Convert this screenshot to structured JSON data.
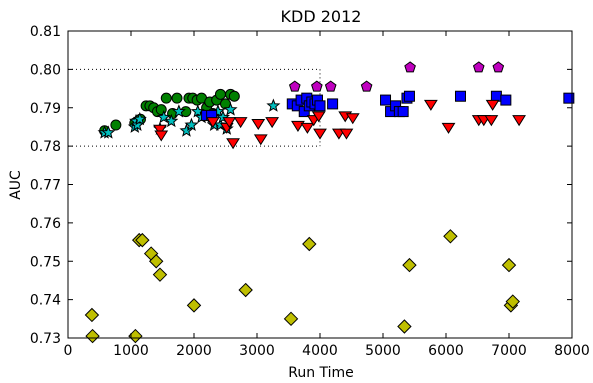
{
  "chart_data": {
    "type": "scatter",
    "title": "KDD 2012",
    "xlabel": "Run Time",
    "ylabel": "AUC",
    "xlim": [
      0,
      8000
    ],
    "ylim": [
      0.73,
      0.81
    ],
    "xticks": [
      0,
      1000,
      2000,
      3000,
      4000,
      5000,
      6000,
      7000,
      8000
    ],
    "yticks": [
      0.73,
      0.74,
      0.75,
      0.76,
      0.77,
      0.78,
      0.79,
      0.8,
      0.81
    ],
    "xtick_labels": [
      "0",
      "1000",
      "2000",
      "3000",
      "4000",
      "5000",
      "6000",
      "7000",
      "8000"
    ],
    "ytick_labels": [
      "0.73",
      "0.74",
      "0.75",
      "0.76",
      "0.77",
      "0.78",
      "0.79",
      "0.80",
      "0.81"
    ],
    "grid": false,
    "reference_box": {
      "x": [
        0,
        4000
      ],
      "y": [
        0.78,
        0.8
      ]
    },
    "series": [
      {
        "marker": "diamond",
        "color": "#bfbf00",
        "points": [
          [
            380,
            0.736
          ],
          [
            390,
            0.7305
          ],
          [
            1070,
            0.7305
          ],
          [
            1130,
            0.7555
          ],
          [
            1180,
            0.7555
          ],
          [
            1320,
            0.752
          ],
          [
            1400,
            0.75
          ],
          [
            1460,
            0.7465
          ],
          [
            2000,
            0.7385
          ],
          [
            2820,
            0.7425
          ],
          [
            3540,
            0.735
          ],
          [
            3830,
            0.7545
          ],
          [
            5340,
            0.733
          ],
          [
            5420,
            0.749
          ],
          [
            6070,
            0.7565
          ],
          [
            7000,
            0.749
          ],
          [
            7030,
            0.7385
          ],
          [
            7060,
            0.7395
          ]
        ]
      },
      {
        "marker": "circle",
        "color": "#008000",
        "points": [
          [
            580,
            0.784
          ],
          [
            760,
            0.7855
          ],
          [
            1060,
            0.786
          ],
          [
            1150,
            0.787
          ],
          [
            1240,
            0.7905
          ],
          [
            1300,
            0.7905
          ],
          [
            1360,
            0.79
          ],
          [
            1420,
            0.789
          ],
          [
            1480,
            0.7895
          ],
          [
            1560,
            0.7925
          ],
          [
            1660,
            0.7885
          ],
          [
            1730,
            0.7925
          ],
          [
            1870,
            0.789
          ],
          [
            1920,
            0.7925
          ],
          [
            1980,
            0.7925
          ],
          [
            2050,
            0.792
          ],
          [
            2120,
            0.7925
          ],
          [
            2200,
            0.79
          ],
          [
            2250,
            0.7915
          ],
          [
            2300,
            0.7885
          ],
          [
            2360,
            0.792
          ],
          [
            2420,
            0.7935
          ],
          [
            2500,
            0.791
          ],
          [
            2580,
            0.7935
          ],
          [
            2640,
            0.793
          ]
        ]
      },
      {
        "marker": "star",
        "color": "#00bfbf",
        "points": [
          [
            580,
            0.7835
          ],
          [
            640,
            0.7835
          ],
          [
            1060,
            0.785
          ],
          [
            1080,
            0.7865
          ],
          [
            1100,
            0.7855
          ],
          [
            1140,
            0.787
          ],
          [
            1460,
            0.7845
          ],
          [
            1520,
            0.7875
          ],
          [
            1640,
            0.7865
          ],
          [
            1760,
            0.789
          ],
          [
            1880,
            0.784
          ],
          [
            1960,
            0.7855
          ],
          [
            2060,
            0.789
          ],
          [
            2120,
            0.7875
          ],
          [
            2280,
            0.7875
          ],
          [
            2320,
            0.7855
          ],
          [
            2380,
            0.789
          ],
          [
            2420,
            0.7855
          ],
          [
            2460,
            0.7875
          ],
          [
            2520,
            0.7845
          ],
          [
            2580,
            0.7895
          ],
          [
            3260,
            0.7905
          ]
        ]
      },
      {
        "marker": "square",
        "color": "#0000ff",
        "points": [
          [
            2200,
            0.788
          ],
          [
            2280,
            0.788
          ],
          [
            3560,
            0.791
          ],
          [
            3640,
            0.7905
          ],
          [
            3700,
            0.792
          ],
          [
            3750,
            0.789
          ],
          [
            3790,
            0.7925
          ],
          [
            3830,
            0.7905
          ],
          [
            3870,
            0.7915
          ],
          [
            3920,
            0.791
          ],
          [
            3960,
            0.792
          ],
          [
            4000,
            0.7905
          ],
          [
            4200,
            0.791
          ],
          [
            5040,
            0.792
          ],
          [
            5120,
            0.789
          ],
          [
            5200,
            0.7905
          ],
          [
            5260,
            0.789
          ],
          [
            5320,
            0.789
          ],
          [
            5380,
            0.7925
          ],
          [
            5420,
            0.793
          ],
          [
            6230,
            0.793
          ],
          [
            6800,
            0.793
          ],
          [
            6950,
            0.792
          ],
          [
            7950,
            0.7925
          ]
        ]
      },
      {
        "marker": "triangle-down",
        "color": "#ff0000",
        "points": [
          [
            1460,
            0.7845
          ],
          [
            1480,
            0.783
          ],
          [
            2300,
            0.7865
          ],
          [
            2520,
            0.785
          ],
          [
            2560,
            0.7865
          ],
          [
            2620,
            0.781
          ],
          [
            2740,
            0.7865
          ],
          [
            3020,
            0.786
          ],
          [
            3060,
            0.782
          ],
          [
            3240,
            0.7865
          ],
          [
            3650,
            0.7855
          ],
          [
            3800,
            0.785
          ],
          [
            3900,
            0.787
          ],
          [
            3980,
            0.788
          ],
          [
            4000,
            0.7835
          ],
          [
            4300,
            0.7835
          ],
          [
            4400,
            0.788
          ],
          [
            4420,
            0.7835
          ],
          [
            4520,
            0.7875
          ],
          [
            5760,
            0.791
          ],
          [
            6040,
            0.785
          ],
          [
            6520,
            0.787
          ],
          [
            6600,
            0.787
          ],
          [
            6720,
            0.787
          ],
          [
            6740,
            0.791
          ],
          [
            7160,
            0.787
          ]
        ]
      },
      {
        "marker": "pentagon",
        "color": "#bf00bf",
        "points": [
          [
            3600,
            0.7955
          ],
          [
            3950,
            0.7955
          ],
          [
            4170,
            0.7955
          ],
          [
            4740,
            0.7955
          ],
          [
            5430,
            0.8005
          ],
          [
            6520,
            0.8005
          ],
          [
            6830,
            0.8005
          ]
        ]
      }
    ]
  }
}
